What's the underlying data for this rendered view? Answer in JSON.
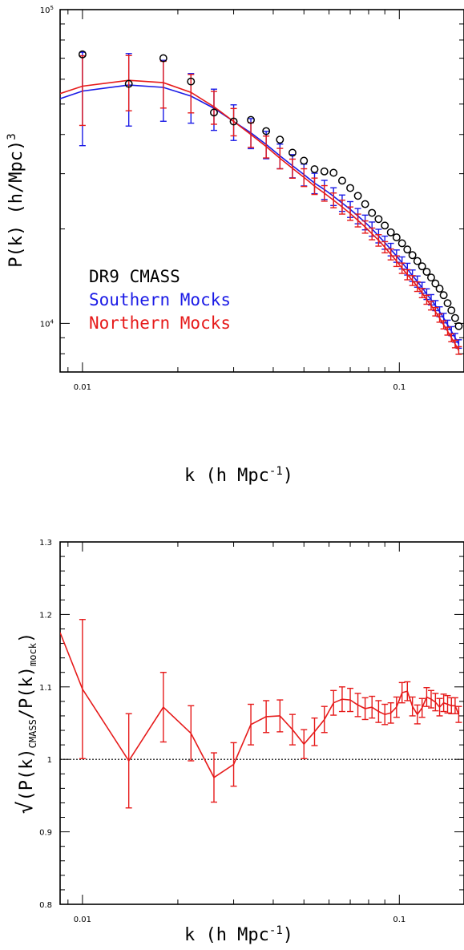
{
  "chart_data": [
    {
      "type": "scatter",
      "xscale": "log",
      "yscale": "log",
      "xlim": [
        0.0085,
        0.16
      ],
      "ylim": [
        7000,
        100000
      ],
      "xlabel": "k (h Mpc",
      "xlabel_sup": "-1",
      "xlabel_close": ")",
      "ylabel": "P(k) (h/Mpc)",
      "ylabel_sup": "3",
      "x_ticks": [
        {
          "value": 0.01,
          "label": "0.01"
        },
        {
          "value": 0.1,
          "label": "0.1"
        }
      ],
      "y_ticks": [
        {
          "value": 10000,
          "label": "10",
          "sup": "4"
        },
        {
          "value": 100000,
          "label": "10",
          "sup": "5"
        }
      ],
      "legend": [
        {
          "label": "DR9 CMASS",
          "color": "#000000"
        },
        {
          "label": "Southern Mocks",
          "color": "#1a1ae6"
        },
        {
          "label": "Northern Mocks",
          "color": "#e61a1a"
        }
      ],
      "series": [
        {
          "name": "DR9 CMASS",
          "kind": "points",
          "color": "#000000",
          "x": [
            0.01,
            0.014,
            0.018,
            0.022,
            0.026,
            0.03,
            0.034,
            0.038,
            0.042,
            0.046,
            0.05,
            0.054,
            0.058,
            0.062,
            0.066,
            0.07,
            0.074,
            0.078,
            0.082,
            0.086,
            0.09,
            0.094,
            0.098,
            0.102,
            0.106,
            0.11,
            0.114,
            0.118,
            0.122,
            0.126,
            0.13,
            0.134,
            0.138,
            0.142,
            0.146,
            0.15,
            0.154
          ],
          "y": [
            72000,
            58000,
            70000,
            59000,
            47000,
            44000,
            44500,
            41000,
            38500,
            35000,
            33000,
            31000,
            30500,
            30200,
            28500,
            27000,
            25500,
            24000,
            22500,
            21500,
            20500,
            19500,
            18800,
            18000,
            17200,
            16500,
            15800,
            15200,
            14600,
            14000,
            13400,
            12900,
            12300,
            11600,
            11000,
            10400,
            9800
          ]
        },
        {
          "name": "Southern Mocks",
          "kind": "line-errorbars",
          "color": "#1a1ae6",
          "x": [
            0.0085,
            0.01,
            0.014,
            0.018,
            0.022,
            0.026,
            0.03,
            0.034,
            0.038,
            0.042,
            0.046,
            0.05,
            0.054,
            0.058,
            0.062,
            0.066,
            0.07,
            0.074,
            0.078,
            0.082,
            0.086,
            0.09,
            0.094,
            0.098,
            0.102,
            0.106,
            0.11,
            0.114,
            0.118,
            0.122,
            0.126,
            0.13,
            0.134,
            0.138,
            0.142,
            0.146,
            0.15,
            0.154
          ],
          "y": [
            52000,
            55000,
            57500,
            56500,
            53000,
            48500,
            44000,
            40500,
            37200,
            34200,
            31800,
            29800,
            28000,
            26700,
            25400,
            24200,
            23100,
            22000,
            21000,
            20000,
            19000,
            18100,
            17200,
            16400,
            15600,
            14900,
            14200,
            13600,
            13000,
            12400,
            11900,
            11400,
            10900,
            10400,
            9900,
            9450,
            9000,
            8600
          ],
          "err_frac": [
            0,
            0.33,
            0.26,
            0.22,
            0.18,
            0.15,
            0.13,
            0.11,
            0.1,
            0.09,
            0.085,
            0.08,
            0.075,
            0.07,
            0.065,
            0.06,
            0.058,
            0.056,
            0.054,
            0.052,
            0.05,
            0.048,
            0.046,
            0.045,
            0.044,
            0.043,
            0.042,
            0.041,
            0.04,
            0.039,
            0.038,
            0.037,
            0.036,
            0.035,
            0.034,
            0.033,
            0.032,
            0.031
          ]
        },
        {
          "name": "Northern Mocks",
          "kind": "line-errorbars",
          "color": "#e61a1a",
          "x": [
            0.0085,
            0.01,
            0.014,
            0.018,
            0.022,
            0.026,
            0.03,
            0.034,
            0.038,
            0.042,
            0.046,
            0.05,
            0.054,
            0.058,
            0.062,
            0.066,
            0.07,
            0.074,
            0.078,
            0.082,
            0.086,
            0.09,
            0.094,
            0.098,
            0.102,
            0.106,
            0.11,
            0.114,
            0.118,
            0.122,
            0.126,
            0.13,
            0.134,
            0.138,
            0.142,
            0.146,
            0.15,
            0.154
          ],
          "y": [
            54000,
            57000,
            59500,
            58500,
            54500,
            49000,
            44000,
            40000,
            36600,
            33600,
            31200,
            29200,
            27400,
            26000,
            24700,
            23500,
            22400,
            21300,
            20300,
            19300,
            18400,
            17500,
            16600,
            15800,
            15000,
            14300,
            13700,
            13100,
            12500,
            11900,
            11400,
            10900,
            10400,
            9900,
            9450,
            9000,
            8600,
            8200
          ],
          "err_frac": [
            0,
            0.25,
            0.2,
            0.17,
            0.14,
            0.12,
            0.1,
            0.09,
            0.08,
            0.075,
            0.07,
            0.065,
            0.06,
            0.057,
            0.054,
            0.051,
            0.049,
            0.047,
            0.045,
            0.043,
            0.042,
            0.041,
            0.04,
            0.039,
            0.038,
            0.037,
            0.036,
            0.035,
            0.034,
            0.033,
            0.032,
            0.031,
            0.03,
            0.03,
            0.029,
            0.029,
            0.028,
            0.028
          ]
        }
      ]
    },
    {
      "type": "line",
      "xscale": "log",
      "xlim": [
        0.0085,
        0.16
      ],
      "ylim": [
        0.8,
        1.3
      ],
      "xlabel": "k (h Mpc",
      "xlabel_sup": "-1",
      "xlabel_close": ")",
      "ylabel_parts": {
        "sqrt": "√",
        "open": "(P(k)",
        "sub1": "CMASS",
        "mid": "/P(k)",
        "sub2": "mock",
        "close": ")"
      },
      "x_ticks": [
        {
          "value": 0.01,
          "label": "0.01"
        },
        {
          "value": 0.1,
          "label": "0.1"
        }
      ],
      "y_ticks": [
        {
          "value": 0.8,
          "label": "0.8"
        },
        {
          "value": 0.9,
          "label": "0.9"
        },
        {
          "value": 1.0,
          "label": "1"
        },
        {
          "value": 1.1,
          "label": "1.1"
        },
        {
          "value": 1.2,
          "label": "1.2"
        },
        {
          "value": 1.3,
          "label": "1.3"
        }
      ],
      "reference_line": 1.0,
      "series": [
        {
          "name": "ratio",
          "kind": "line-errorbars",
          "color": "#e61a1a",
          "x": [
            0.0085,
            0.01,
            0.014,
            0.018,
            0.022,
            0.026,
            0.03,
            0.034,
            0.038,
            0.042,
            0.046,
            0.05,
            0.054,
            0.058,
            0.062,
            0.066,
            0.07,
            0.074,
            0.078,
            0.082,
            0.086,
            0.09,
            0.094,
            0.098,
            0.102,
            0.106,
            0.11,
            0.114,
            0.118,
            0.122,
            0.126,
            0.13,
            0.134,
            0.138,
            0.142,
            0.146,
            0.15,
            0.154
          ],
          "y": [
            1.175,
            1.097,
            0.998,
            1.072,
            1.036,
            0.975,
            0.993,
            1.048,
            1.059,
            1.06,
            1.041,
            1.021,
            1.038,
            1.055,
            1.078,
            1.083,
            1.082,
            1.075,
            1.07,
            1.072,
            1.066,
            1.062,
            1.064,
            1.072,
            1.092,
            1.094,
            1.073,
            1.062,
            1.071,
            1.086,
            1.083,
            1.079,
            1.072,
            1.078,
            1.076,
            1.074,
            1.074,
            1.062
          ],
          "err": [
            0,
            0.096,
            0.065,
            0.048,
            0.038,
            0.034,
            0.03,
            0.028,
            0.022,
            0.022,
            0.021,
            0.02,
            0.019,
            0.018,
            0.017,
            0.017,
            0.016,
            0.016,
            0.015,
            0.015,
            0.015,
            0.014,
            0.014,
            0.014,
            0.014,
            0.013,
            0.013,
            0.013,
            0.013,
            0.013,
            0.012,
            0.012,
            0.012,
            0.012,
            0.012,
            0.011,
            0.011,
            0.011
          ]
        }
      ]
    }
  ]
}
